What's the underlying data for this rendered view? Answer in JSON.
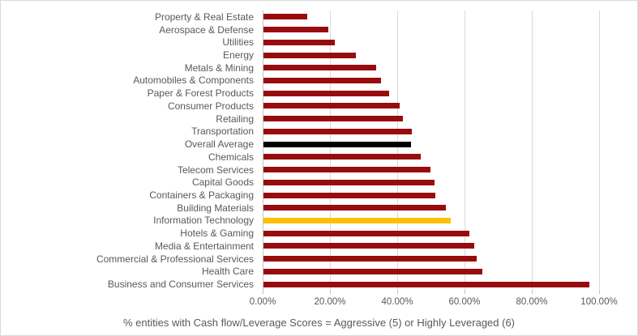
{
  "chart_data": {
    "type": "bar",
    "orientation": "horizontal",
    "title": "",
    "xlabel": "% entities with Cash flow/Leverage Scores = Aggressive (5) or Highly Leveraged (6)",
    "ylabel": "",
    "xlim": [
      0,
      100
    ],
    "x_tick_labels": [
      "0.00%",
      "20.00%",
      "40.00%",
      "60.00%",
      "80.00%",
      "100.00%"
    ],
    "grid": true,
    "legend": "none",
    "categories": [
      "Property & Real Estate",
      "Aerospace & Defense",
      "Utilities",
      "Energy",
      "Metals & Mining",
      "Automobiles & Components",
      "Paper & Forest Products",
      "Consumer Products",
      "Retailing",
      "Transportation",
      "Overall Average",
      "Chemicals",
      "Telecom Services",
      "Capital Goods",
      "Containers & Packaging",
      "Building Materials",
      "Information Technology",
      "Hotels & Gaming",
      "Media & Entertainment",
      "Commercial & Professional Services",
      "Health Care",
      "Business and Consumer Services"
    ],
    "values": [
      13.1,
      19.3,
      21.2,
      27.5,
      33.5,
      35.0,
      37.4,
      40.5,
      41.5,
      44.0,
      43.9,
      46.8,
      49.7,
      50.9,
      51.2,
      54.1,
      55.6,
      61.3,
      62.7,
      63.4,
      65.0,
      96.9
    ],
    "bar_colors": [
      "#980B0E",
      "#980B0E",
      "#980B0E",
      "#980B0E",
      "#980B0E",
      "#980B0E",
      "#980B0E",
      "#980B0E",
      "#980B0E",
      "#980B0E",
      "#000000",
      "#980B0E",
      "#980B0E",
      "#980B0E",
      "#980B0E",
      "#980B0E",
      "#FFC000",
      "#980B0E",
      "#980B0E",
      "#980B0E",
      "#980B0E",
      "#980B0E"
    ]
  },
  "colors": {
    "bar_default": "#980B0E",
    "bar_overall_average": "#000000",
    "bar_information_technology": "#FFC000",
    "gridline": "#d9d9d9",
    "axis_line": "#c6c6c6",
    "text": "#595959",
    "border": "#d9d9d9",
    "background": "#ffffff"
  }
}
